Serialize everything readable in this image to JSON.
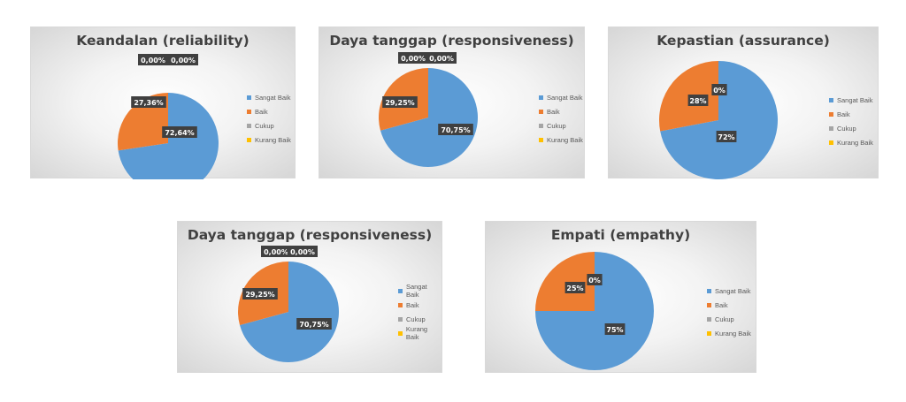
{
  "colors": {
    "sangat_baik": "#5B9BD5",
    "baik": "#ED7D31",
    "cukup": "#A5A5A5",
    "kurang_baik": "#FFC000"
  },
  "chart_data": [
    {
      "type": "pie",
      "title": "Keandalan (reliability)",
      "categories": [
        "Sangat Baik",
        "Baik",
        "Cukup",
        "Kurang Baik"
      ],
      "values": [
        72.64,
        27.36,
        0.0,
        0.0
      ],
      "data_labels": [
        "72,64%",
        "27,36%",
        "0,00%",
        "0,00%"
      ],
      "legend": "right"
    },
    {
      "type": "pie",
      "title": "Daya tanggap (responsiveness)",
      "categories": [
        "Sangat Baik",
        "Baik",
        "Cukup",
        "Kurang Baik"
      ],
      "values": [
        70.75,
        29.25,
        0.0,
        0.0
      ],
      "data_labels": [
        "70,75%",
        "29,25%",
        "0,00%",
        "0,00%"
      ],
      "legend": "right"
    },
    {
      "type": "pie",
      "title": "Kepastian (assurance)",
      "categories": [
        "Sangat Baik",
        "Baik",
        "Cukup",
        "Kurang Baik"
      ],
      "values": [
        72,
        28,
        0,
        0
      ],
      "data_labels": [
        "72%",
        "28%",
        "0%",
        ""
      ],
      "legend": "right"
    },
    {
      "type": "pie",
      "title": "Daya tanggap (responsiveness)",
      "categories": [
        "Sangat Baik",
        "Baik",
        "Cukup",
        "Kurang Baik"
      ],
      "values": [
        70.75,
        29.25,
        0.0,
        0.0
      ],
      "data_labels": [
        "70,75%",
        "29,25%",
        "0,00%",
        "0,00%"
      ],
      "legend": "right"
    },
    {
      "type": "pie",
      "title": "Empati (empathy)",
      "categories": [
        "Sangat Baik",
        "Baik",
        "Cukup",
        "Kurang Baik"
      ],
      "values": [
        75,
        25,
        0,
        0
      ],
      "data_labels": [
        "75%",
        "25%",
        "0%",
        ""
      ],
      "legend": "right"
    }
  ]
}
